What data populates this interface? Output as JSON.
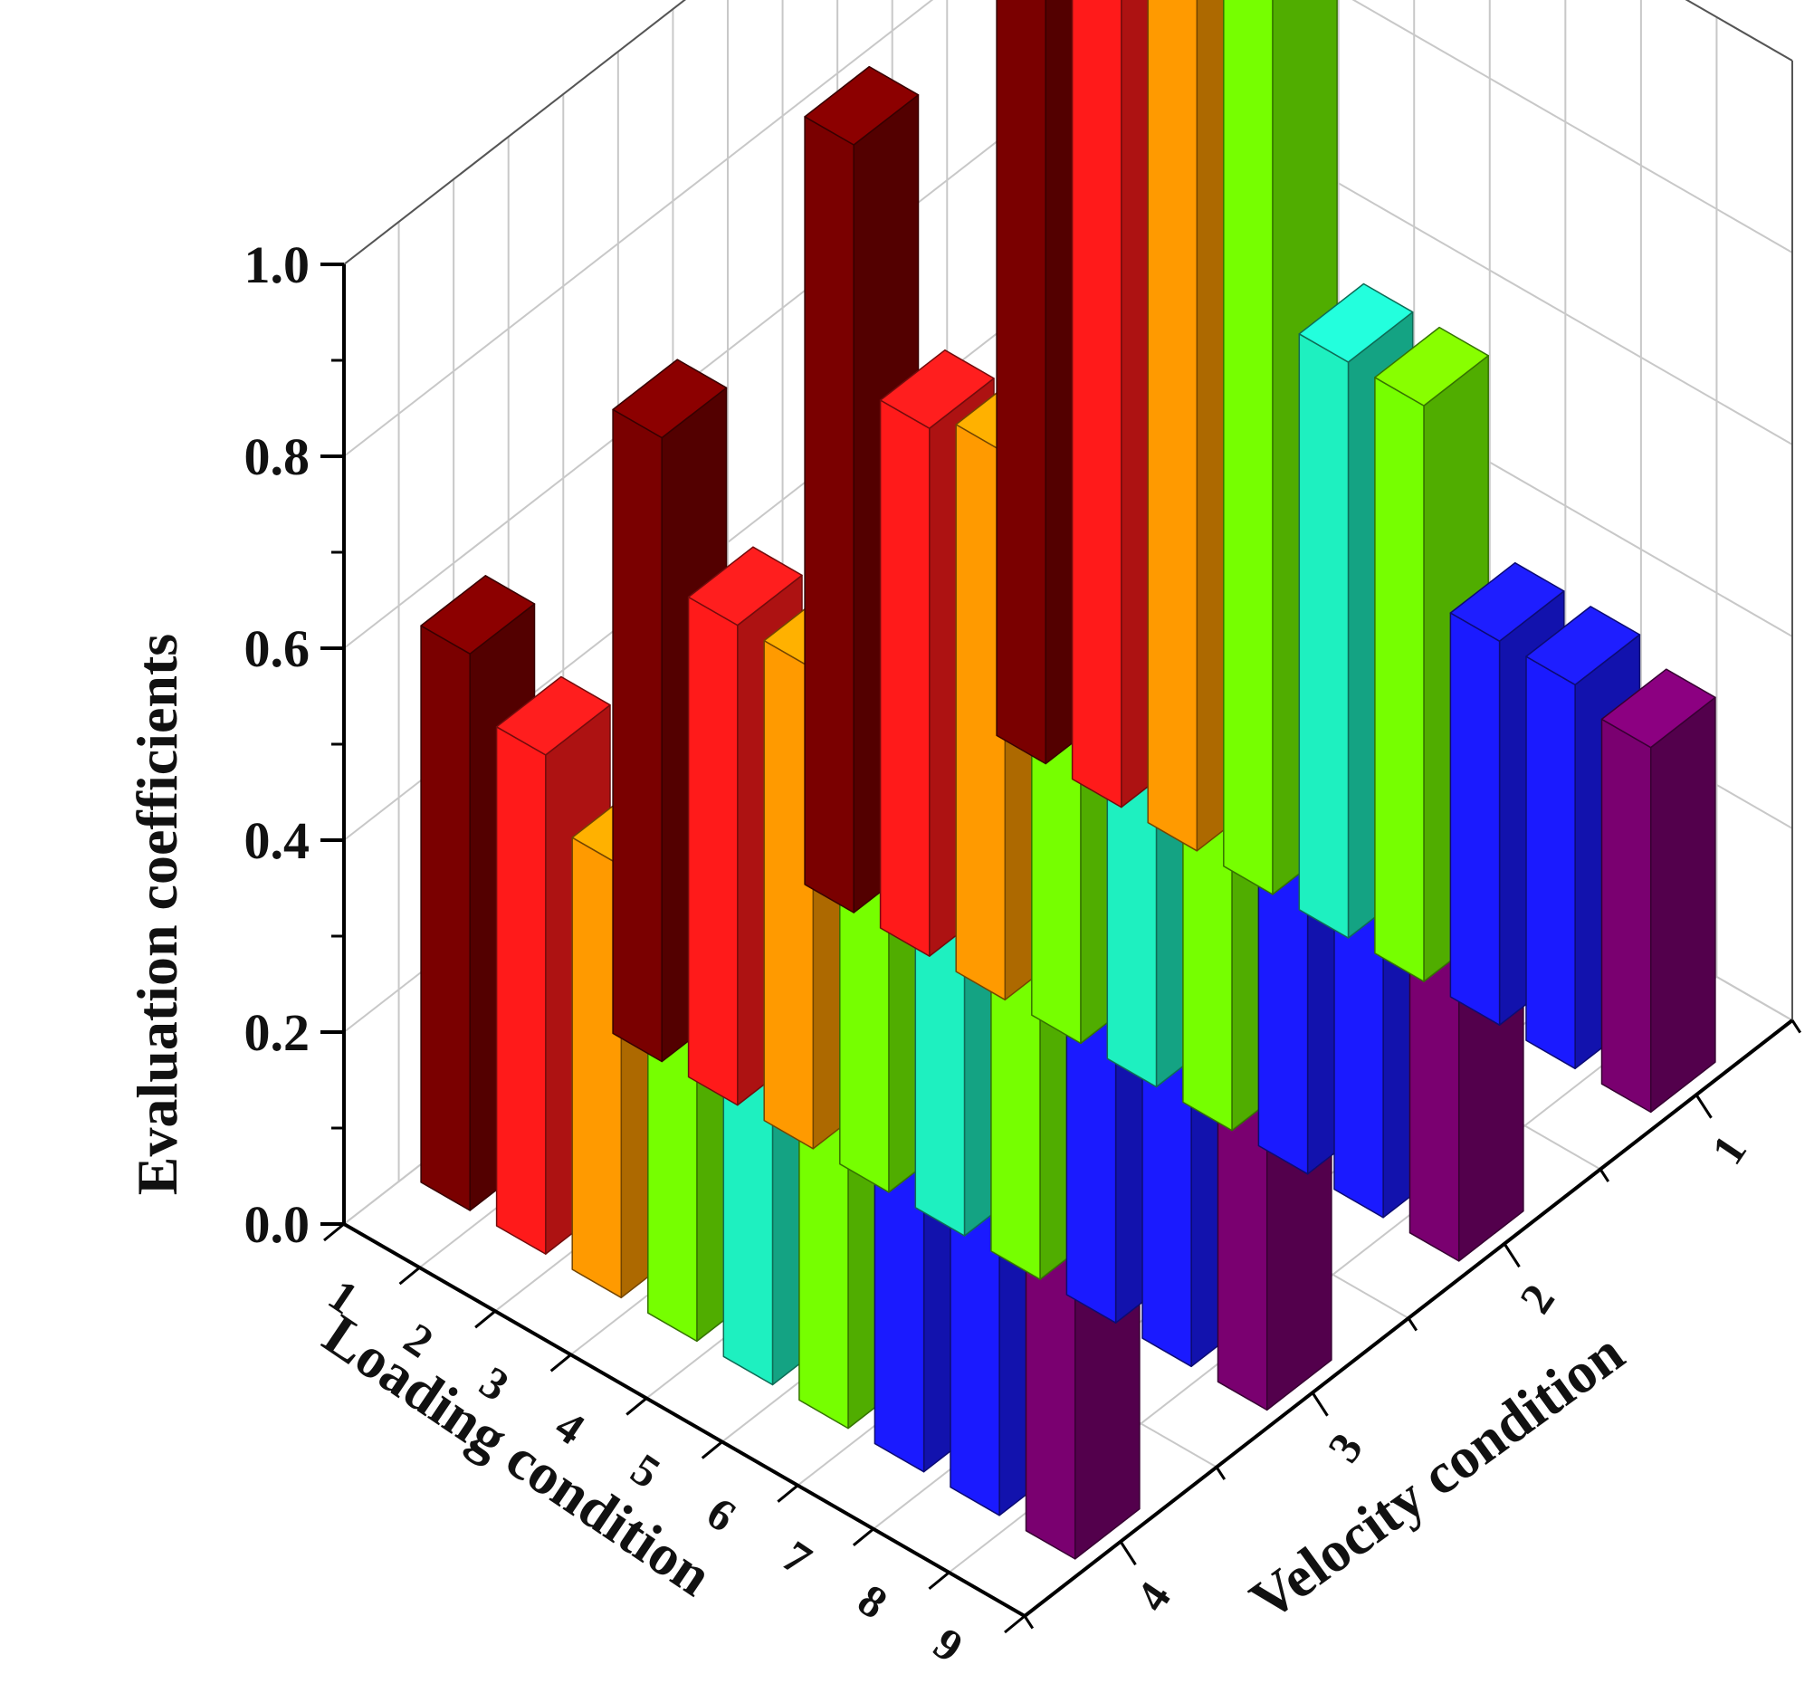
{
  "chart_data": {
    "type": "bar3d",
    "zlabel": "Evaluation coefficients",
    "xlabel": "Loading condition",
    "ylabel": "Velocity condition",
    "x_categories": [
      "1",
      "2",
      "3",
      "4",
      "5",
      "6",
      "7",
      "8",
      "9"
    ],
    "y_categories": [
      "1",
      "2",
      "3",
      "4"
    ],
    "z_ticks": [
      "0.0",
      "0.2",
      "0.4",
      "0.6",
      "0.8",
      "1.0"
    ],
    "zlim": [
      0,
      1
    ],
    "grid": true,
    "values": [
      [
        1.0,
        1.0,
        1.0,
        1.0,
        0.6,
        0.6,
        0.4,
        0.4,
        0.38
      ],
      [
        0.8,
        0.55,
        0.57,
        0.5,
        0.57,
        0.5,
        0.45,
        0.38,
        0.31
      ],
      [
        0.65,
        0.5,
        0.5,
        0.38,
        0.58,
        0.48,
        0.38,
        0.33,
        0.37
      ],
      [
        0.58,
        0.52,
        0.45,
        0.5,
        0.38,
        0.45,
        0.46,
        0.37,
        0.38
      ]
    ],
    "velocity_colors": [
      "#7a0000",
      "#ff1a1a",
      "#76ff00",
      "#1a1aff"
    ],
    "loading_colors": [
      "#7a0000",
      "#ff1a1a",
      "#ff9a00",
      "#76ff00",
      "#1ef0c0",
      "#76ff00",
      "#1a1aff",
      "#1a1aff",
      "#7a0070"
    ]
  }
}
